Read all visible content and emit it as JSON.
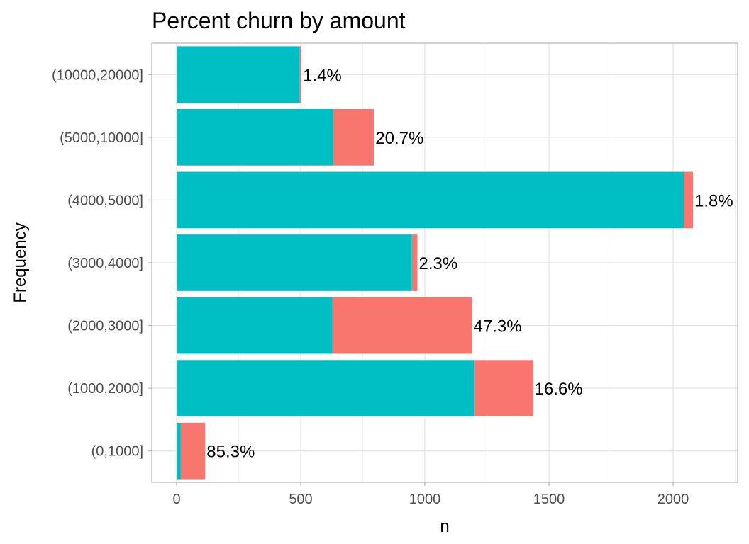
{
  "chart_data": {
    "type": "bar",
    "orientation": "horizontal",
    "stacked": true,
    "title": "Percent churn by amount",
    "xlabel": "n",
    "ylabel": "Frequency",
    "xlim": [
      -100,
      2260
    ],
    "xticks": [
      0,
      500,
      1000,
      1500,
      2000
    ],
    "categories": [
      "(0,1000]",
      "(1000,2000]",
      "(2000,3000]",
      "(3000,4000]",
      "(4000,5000]",
      "(5000,10000]",
      "(10000,20000]"
    ],
    "series": [
      {
        "values": [
          17,
          1198,
          627,
          948,
          2043,
          630,
          496
        ],
        "color": "#00BFC4"
      },
      {
        "values": [
          98,
          238,
          563,
          22,
          37,
          165,
          7
        ],
        "color": "#F8766D"
      }
    ],
    "labels": [
      "85.3%",
      "16.6%",
      "47.3%",
      "2.3%",
      "1.8%",
      "20.7%",
      "1.4%"
    ],
    "grid": true,
    "legend": "none"
  }
}
